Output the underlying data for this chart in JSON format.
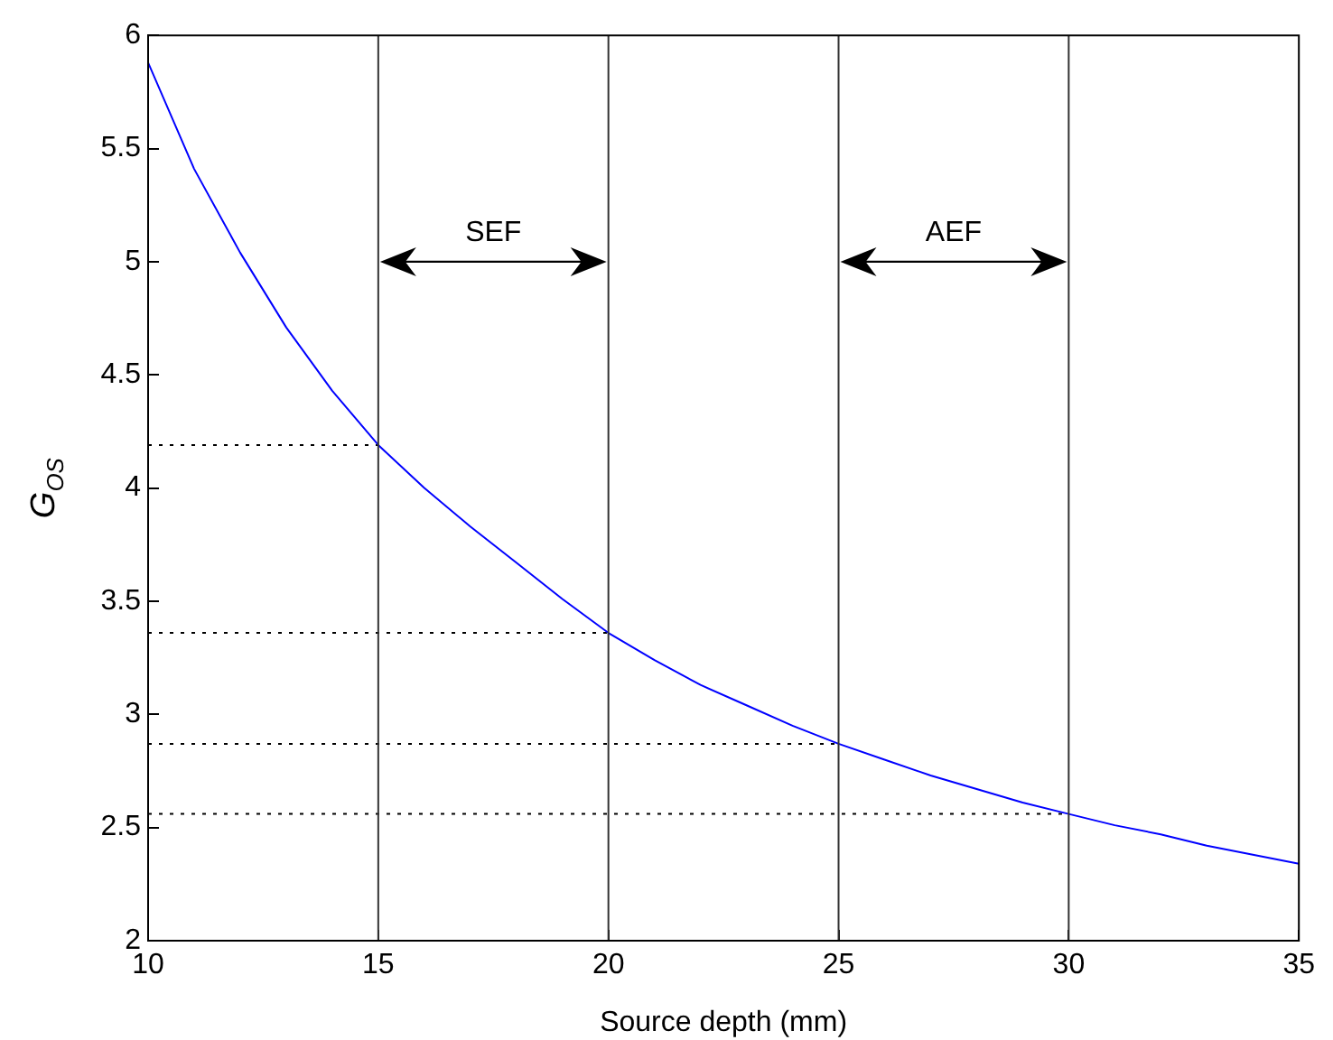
{
  "chart_data": {
    "type": "line",
    "xlabel": "Source depth (mm)",
    "ylabel": "G$_{OS}$",
    "xlim": [
      10,
      35
    ],
    "xticks": [
      10,
      15,
      20,
      25,
      30,
      35
    ],
    "ylim": [
      2,
      6
    ],
    "yticks": [
      2,
      2.5,
      3,
      3.5,
      4,
      4.5,
      5,
      5.5,
      6
    ],
    "grid": false,
    "legend": false,
    "marker": "none",
    "series": [
      {
        "color": "#0000ff",
        "line_style": "solid",
        "x": [
          10,
          11,
          12,
          13,
          14,
          15,
          16,
          17,
          18,
          19,
          20,
          21,
          22,
          23,
          24,
          25,
          26,
          27,
          28,
          29,
          30,
          31,
          32,
          33,
          34,
          35
        ],
        "values": [
          5.88,
          5.41,
          5.04,
          4.71,
          4.43,
          4.19,
          4.0,
          3.83,
          3.67,
          3.51,
          3.36,
          3.24,
          3.13,
          3.04,
          2.95,
          2.87,
          2.8,
          2.73,
          2.67,
          2.61,
          2.56,
          2.51,
          2.47,
          2.42,
          2.38,
          2.34
        ]
      },
      {
        "color": "#000000",
        "line_style": "dotted",
        "x": [
          10,
          15
        ],
        "values": [
          4.19,
          4.19
        ]
      },
      {
        "color": "#000000",
        "line_style": "dotted",
        "x": [
          10,
          20
        ],
        "values": [
          3.36,
          3.36
        ]
      },
      {
        "color": "#000000",
        "line_style": "dotted",
        "x": [
          10,
          25
        ],
        "values": [
          2.87,
          2.87
        ]
      },
      {
        "color": "#000000",
        "line_style": "dotted",
        "x": [
          10,
          30
        ],
        "values": [
          2.56,
          2.56
        ]
      }
    ],
    "ref_lines": [
      {
        "axis": "x",
        "value": 15,
        "color": "#333333"
      },
      {
        "axis": "x",
        "value": 20,
        "color": "#333333"
      },
      {
        "axis": "x",
        "value": 25,
        "color": "#333333"
      },
      {
        "axis": "x",
        "value": 30,
        "color": "#333333"
      }
    ],
    "annotations": [
      "SEF",
      "AEF"
    ]
  }
}
